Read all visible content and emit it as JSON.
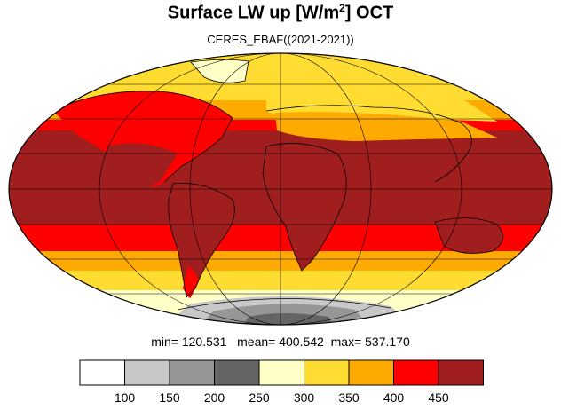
{
  "header": {
    "title_main": "Surface LW up [W/m",
    "title_sup": "2",
    "title_tail": "]  OCT",
    "subtitle": "CERES_EBAF((2021-2021))"
  },
  "stats": {
    "min_label": "min=",
    "min": "120.531",
    "mean_label": "mean=",
    "mean": "400.542",
    "max_label": "max=",
    "max": "537.170"
  },
  "colorbar": {
    "ticks": [
      "100",
      "150",
      "200",
      "250",
      "300",
      "350",
      "400",
      "450"
    ],
    "colors": [
      "#ffffff",
      "#c8c8c8",
      "#969696",
      "#646464",
      "#ffffc8",
      "#ffdc32",
      "#ffaa00",
      "#ff0000",
      "#a01e1e"
    ]
  },
  "map": {
    "projection": "mollweide",
    "colors": {
      "tropics": "#a01e1e",
      "subtropics": "#ff0000",
      "midlat": "#ffaa00",
      "highlat": "#ffdc32",
      "pale": "#ffffc8",
      "ice_dark": "#646464",
      "ice_mid": "#969696",
      "ice_light": "#c8c8c8"
    }
  }
}
